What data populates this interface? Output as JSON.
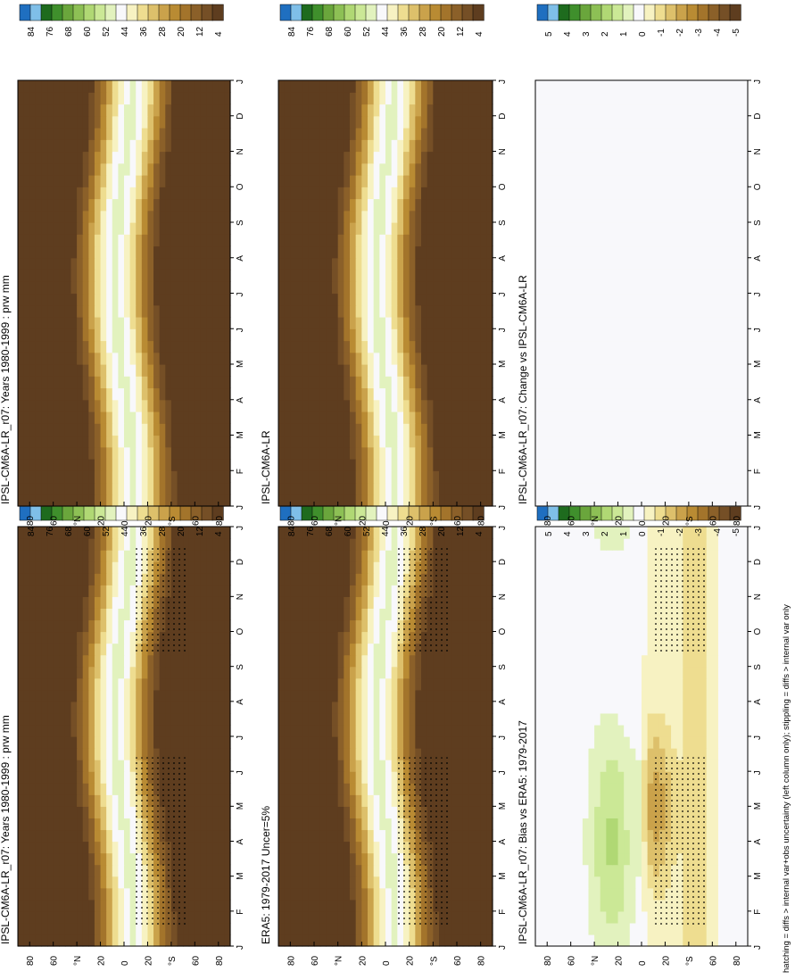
{
  "footnote": "hatching = diffs > internal var+obs uncertainty (left column only); stippling = diffs > internal var only",
  "colors": {
    "precip_scale": [
      "#1f6fc0",
      "#7fbfe8",
      "#1e6b1e",
      "#3f8f2c",
      "#6aa63c",
      "#8dc055",
      "#b0d874",
      "#cbe896",
      "#e2f2be",
      "#f8f8fb",
      "#f7f2c2",
      "#eedd90",
      "#ddc06b",
      "#caa24b",
      "#b98b33",
      "#a3742b",
      "#8b6029",
      "#754f26",
      "#5e3d1f"
    ],
    "diff_scale": [
      "#1f6fc0",
      "#7fbfe8",
      "#1e6b1e",
      "#3f8f2c",
      "#6aa63c",
      "#8dc055",
      "#b0d874",
      "#cbe896",
      "#e2f2be",
      "#f8f8fb",
      "#f7f2c2",
      "#eedd90",
      "#ddc06b",
      "#caa24b",
      "#b98b33",
      "#a3742b",
      "#8b6029",
      "#754f26",
      "#5e3d1f"
    ]
  },
  "chart_data": [
    {
      "type": "heatmap",
      "title": "IPSL-CM6A-LR_r07: Years 1980-1999 : prw mm",
      "months": [
        "J",
        "F",
        "M",
        "A",
        "M",
        "J",
        "J",
        "A",
        "S",
        "O",
        "N",
        "D",
        "J"
      ],
      "lat_ticks": [
        "80",
        "60",
        "°N",
        "20",
        "0",
        "20",
        "°S",
        "60",
        "80"
      ],
      "colorbar_ticks": [
        "84",
        "76",
        "68",
        "60",
        "52",
        "44",
        "36",
        "28",
        "20",
        "12",
        "4"
      ],
      "field": "climatology",
      "stippled": true
    },
    {
      "type": "heatmap",
      "title": "IPSL-CM6A-LR_r07: Years 1980-1999 : prw mm",
      "months": [
        "J",
        "F",
        "M",
        "A",
        "M",
        "J",
        "J",
        "A",
        "S",
        "O",
        "N",
        "D",
        "J"
      ],
      "lat_ticks": [
        "80",
        "60",
        "°N",
        "20",
        "0",
        "20",
        "°S",
        "60",
        "80"
      ],
      "colorbar_ticks": [
        "84",
        "76",
        "68",
        "60",
        "52",
        "44",
        "36",
        "28",
        "20",
        "12",
        "4"
      ],
      "field": "climatology",
      "stippled": false
    },
    {
      "type": "heatmap",
      "title": "ERA5: 1979-2017 Uncer=5%",
      "months": [
        "J",
        "F",
        "M",
        "A",
        "M",
        "J",
        "J",
        "A",
        "S",
        "O",
        "N",
        "D",
        "J"
      ],
      "lat_ticks": [
        "80",
        "60",
        "°N",
        "20",
        "0",
        "20",
        "°S",
        "60",
        "80"
      ],
      "colorbar_ticks": [
        "84",
        "76",
        "68",
        "60",
        "52",
        "44",
        "36",
        "28",
        "20",
        "12",
        "4"
      ],
      "field": "climatology",
      "stippled": true
    },
    {
      "type": "heatmap",
      "title": "IPSL-CM6A-LR",
      "months": [
        "J",
        "F",
        "M",
        "A",
        "M",
        "J",
        "J",
        "A",
        "S",
        "O",
        "N",
        "D",
        "J"
      ],
      "lat_ticks": [
        "80",
        "60",
        "°N",
        "20",
        "0",
        "20",
        "°S",
        "60",
        "80"
      ],
      "colorbar_ticks": [
        "84",
        "76",
        "68",
        "60",
        "52",
        "44",
        "36",
        "28",
        "20",
        "12",
        "4"
      ],
      "field": "climatology",
      "stippled": false
    },
    {
      "type": "heatmap",
      "title": "IPSL-CM6A-LR_r07: Bias vs ERA5: 1979-2017",
      "months": [
        "J",
        "F",
        "M",
        "A",
        "M",
        "J",
        "J",
        "A",
        "S",
        "O",
        "N",
        "D",
        "J"
      ],
      "lat_ticks": [
        "80",
        "60",
        "°N",
        "20",
        "0",
        "20",
        "°S",
        "60",
        "80"
      ],
      "colorbar_ticks": [
        "5",
        "4",
        "3",
        "2",
        "1",
        "0",
        "-1",
        "-2",
        "-3",
        "-4",
        "-5"
      ],
      "field": "bias",
      "stippled": true
    },
    {
      "type": "heatmap",
      "title": "IPSL-CM6A-LR_r07: Change vs IPSL-CM6A-LR",
      "months": [
        "J",
        "F",
        "M",
        "A",
        "M",
        "J",
        "J",
        "A",
        "S",
        "O",
        "N",
        "D",
        "J"
      ],
      "lat_ticks": [
        "80",
        "60",
        "°N",
        "20",
        "0",
        "20",
        "°S",
        "60",
        "80"
      ],
      "colorbar_ticks": [
        "5",
        "4",
        "3",
        "2",
        "1",
        "0",
        "-1",
        "-2",
        "-3",
        "-4",
        "-5"
      ],
      "field": "change",
      "stippled": false
    }
  ]
}
